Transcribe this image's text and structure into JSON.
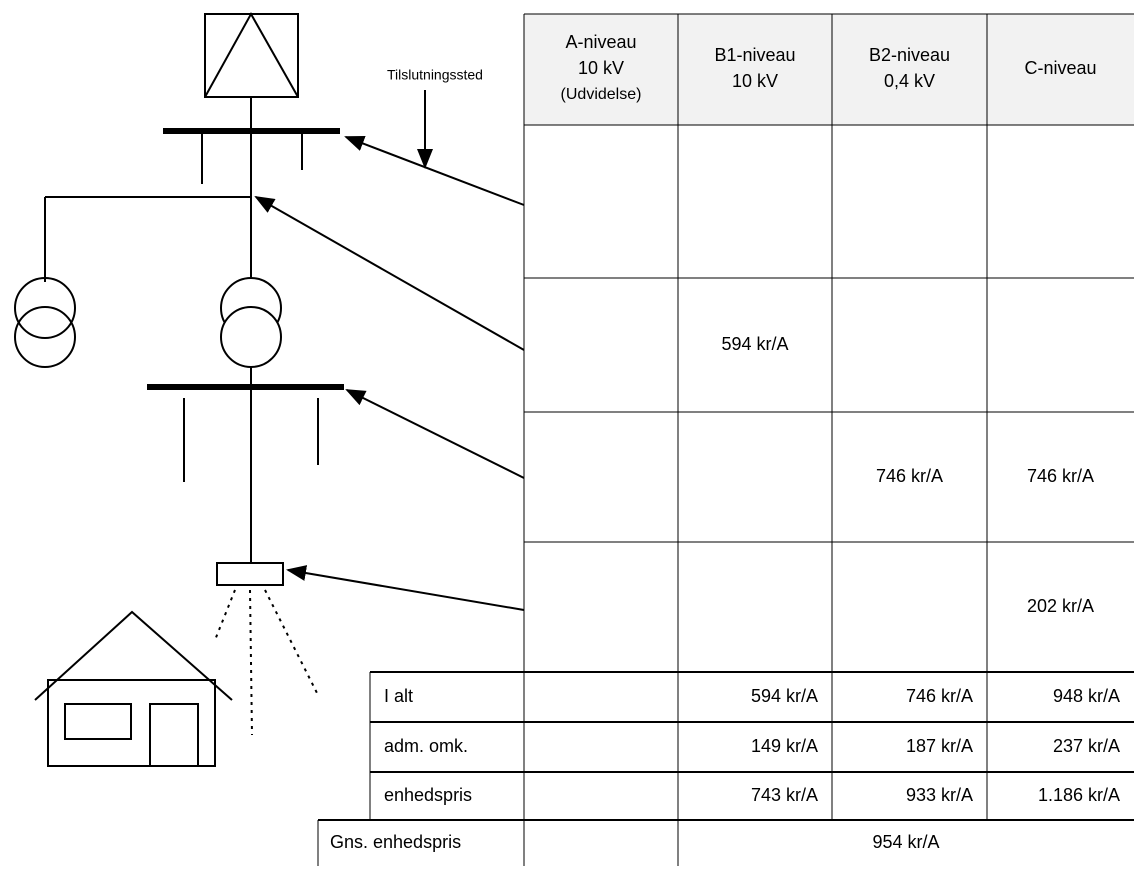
{
  "annotation": "Tilslutningssted",
  "table": {
    "columns": [
      [
        "A-niveau",
        "10 kV",
        "(Udvidelse)"
      ],
      [
        "B1-niveau",
        "10 kV"
      ],
      [
        "B2-niveau",
        "0,4 kV"
      ],
      [
        "C-niveau"
      ]
    ],
    "rows": [
      [
        null,
        null,
        null,
        null
      ],
      [
        null,
        "594 kr/A",
        null,
        null
      ],
      [
        null,
        null,
        "746 kr/A",
        "746 kr/A"
      ],
      [
        null,
        null,
        null,
        "202 kr/A"
      ]
    ],
    "summary": [
      {
        "label": "I alt",
        "cells": [
          null,
          "594 kr/A",
          "746 kr/A",
          "948 kr/A"
        ]
      },
      {
        "label": "adm. omk.",
        "cells": [
          null,
          "149 kr/A",
          "187 kr/A",
          "237 kr/A"
        ]
      },
      {
        "label": "enhedspris",
        "cells": [
          null,
          "743 kr/A",
          "933 kr/A",
          "1.186 kr/A"
        ]
      }
    ],
    "average": {
      "label": "Gns. enhedspris",
      "value": "954 kr/A"
    }
  }
}
